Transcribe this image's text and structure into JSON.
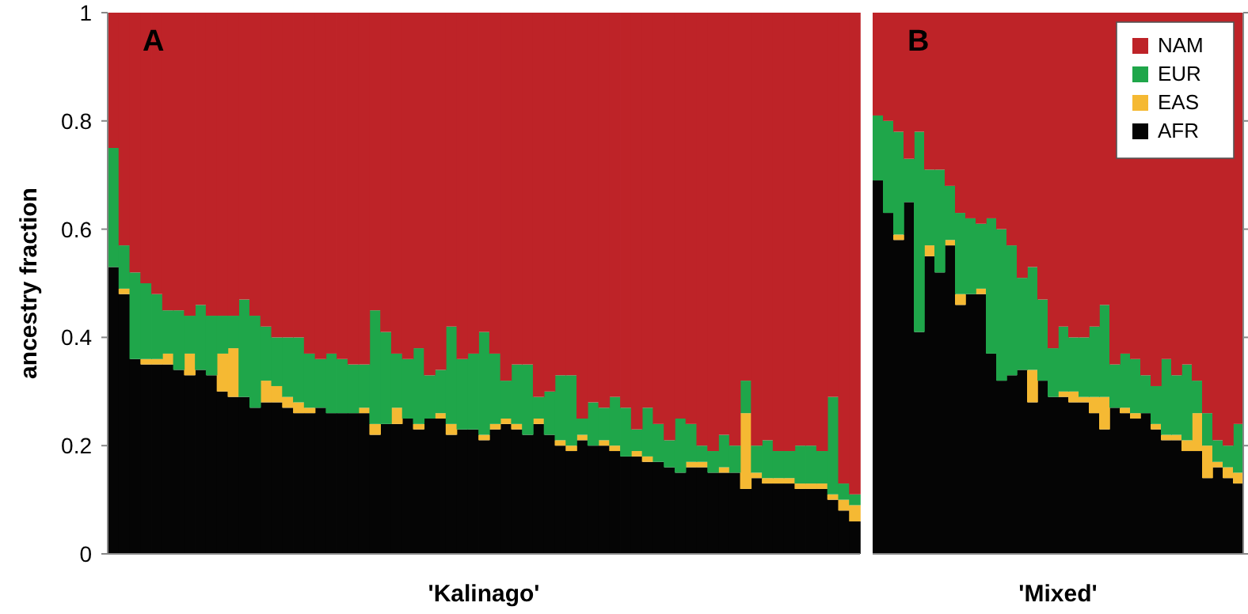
{
  "chart_data": [
    {
      "type": "bar",
      "stacked": true,
      "title": "A",
      "xlabel": "'Kalinago'",
      "ylabel": "ancestry fraction",
      "ylim": [
        0,
        1
      ],
      "yticks": [
        0,
        0.2,
        0.4,
        0.6,
        0.8,
        1
      ],
      "tick_labels": "y",
      "legend": false,
      "categories": [
        null,
        null,
        null,
        null,
        null,
        null,
        null,
        null,
        null,
        null,
        null,
        null,
        null,
        null,
        null,
        null,
        null,
        null,
        null,
        null,
        null,
        null,
        null,
        null,
        null,
        null,
        null,
        null,
        null,
        null,
        null,
        null,
        null,
        null,
        null,
        null,
        null,
        null,
        null,
        null,
        null,
        null,
        null,
        null,
        null,
        null,
        null,
        null,
        null,
        null,
        null,
        null,
        null,
        null,
        null,
        null,
        null,
        null,
        null,
        null,
        null,
        null,
        null,
        null,
        null,
        null,
        null,
        null,
        null
      ],
      "series": [
        {
          "color": "#050505",
          "values": [
            0.53,
            0.48,
            0.36,
            0.35,
            0.35,
            0.35,
            0.34,
            0.33,
            0.34,
            0.33,
            0.3,
            0.29,
            0.29,
            0.27,
            0.28,
            0.28,
            0.27,
            0.26,
            0.26,
            0.27,
            0.26,
            0.26,
            0.26,
            0.26,
            0.22,
            0.24,
            0.24,
            0.25,
            0.23,
            0.25,
            0.25,
            0.22,
            0.23,
            0.23,
            0.21,
            0.23,
            0.24,
            0.23,
            0.22,
            0.24,
            0.22,
            0.2,
            0.19,
            0.21,
            0.2,
            0.2,
            0.19,
            0.18,
            0.18,
            0.17,
            0.17,
            0.16,
            0.15,
            0.16,
            0.16,
            0.15,
            0.15,
            0.15,
            0.12,
            0.14,
            0.13,
            0.13,
            0.13,
            0.12,
            0.12,
            0.12,
            0.1,
            0.08,
            0.06
          ]
        },
        {
          "color": "#f5b933",
          "values": [
            0,
            0.01,
            0,
            0.01,
            0.01,
            0.02,
            0,
            0.04,
            0,
            0,
            0.07,
            0.09,
            0,
            0,
            0.04,
            0.03,
            0.02,
            0.02,
            0.01,
            0,
            0,
            0,
            0,
            0.01,
            0.02,
            0,
            0.03,
            0,
            0.01,
            0,
            0.01,
            0.02,
            0,
            0,
            0.01,
            0.01,
            0.01,
            0.01,
            0,
            0.01,
            0,
            0.01,
            0.01,
            0.01,
            0,
            0.01,
            0.01,
            0,
            0.01,
            0.01,
            0,
            0,
            0,
            0.01,
            0.01,
            0,
            0.01,
            0,
            0.14,
            0.01,
            0.01,
            0.01,
            0.01,
            0.01,
            0.01,
            0.01,
            0.01,
            0.02,
            0.03
          ]
        },
        {
          "color": "#1fa64a",
          "values": [
            0.22,
            0.08,
            0.16,
            0.14,
            0.12,
            0.08,
            0.11,
            0.07,
            0.12,
            0.11,
            0.07,
            0.06,
            0.18,
            0.17,
            0.1,
            0.09,
            0.11,
            0.12,
            0.1,
            0.09,
            0.11,
            0.1,
            0.09,
            0.08,
            0.21,
            0.17,
            0.1,
            0.11,
            0.14,
            0.08,
            0.08,
            0.18,
            0.13,
            0.14,
            0.19,
            0.13,
            0.07,
            0.11,
            0.13,
            0.04,
            0.08,
            0.12,
            0.13,
            0.03,
            0.08,
            0.06,
            0.09,
            0.09,
            0.04,
            0.09,
            0.07,
            0.05,
            0.1,
            0.07,
            0.03,
            0.04,
            0.06,
            0.05,
            0.06,
            0.05,
            0.07,
            0.05,
            0.05,
            0.07,
            0.07,
            0.06,
            0.18,
            0.03,
            0.02
          ]
        },
        {
          "color": "#be2328",
          "values": [
            0.25,
            0.43,
            0.48,
            0.5,
            0.52,
            0.55,
            0.55,
            0.56,
            0.54,
            0.56,
            0.56,
            0.56,
            0.53,
            0.56,
            0.58,
            0.6,
            0.6,
            0.6,
            0.63,
            0.64,
            0.63,
            0.64,
            0.65,
            0.65,
            0.55,
            0.59,
            0.63,
            0.64,
            0.62,
            0.67,
            0.66,
            0.58,
            0.64,
            0.63,
            0.59,
            0.63,
            0.68,
            0.65,
            0.65,
            0.71,
            0.7,
            0.67,
            0.67,
            0.75,
            0.72,
            0.73,
            0.71,
            0.73,
            0.77,
            0.73,
            0.76,
            0.79,
            0.75,
            0.76,
            0.8,
            0.81,
            0.78,
            0.8,
            0.68,
            0.8,
            0.79,
            0.81,
            0.81,
            0.8,
            0.8,
            0.81,
            0.71,
            0.87,
            0.89
          ]
        }
      ]
    },
    {
      "type": "bar",
      "stacked": true,
      "title": "B",
      "xlabel": "'Mixed'",
      "ylim": [
        0,
        1
      ],
      "yticks": [
        {
          "value": 0,
          "label": null
        },
        {
          "value": 0.2,
          "label": null
        },
        {
          "value": 0.4,
          "label": null
        },
        {
          "value": 0.6,
          "label": null
        },
        {
          "value": 0.8,
          "label": null
        },
        {
          "value": 1,
          "label": null
        }
      ],
      "tick_labels": false,
      "legend": "top right",
      "categories": [
        null,
        null,
        null,
        null,
        null,
        null,
        null,
        null,
        null,
        null,
        null,
        null,
        null,
        null,
        null,
        null,
        null,
        null,
        null,
        null,
        null,
        null,
        null,
        null,
        null,
        null,
        null,
        null,
        null,
        null,
        null,
        null,
        null,
        null,
        null,
        null
      ],
      "series": [
        {
          "name": "AFR",
          "color": "#050505",
          "values": [
            0.69,
            0.63,
            0.58,
            0.65,
            0.41,
            0.55,
            0.52,
            0.57,
            0.46,
            0.48,
            0.48,
            0.37,
            0.32,
            0.33,
            0.34,
            0.28,
            0.32,
            0.29,
            0.29,
            0.28,
            0.28,
            0.26,
            0.23,
            0.27,
            0.26,
            0.25,
            0.26,
            0.23,
            0.21,
            0.21,
            0.19,
            0.19,
            0.14,
            0.16,
            0.14,
            0.13
          ]
        },
        {
          "name": "EAS",
          "color": "#f5b933",
          "values": [
            0,
            0,
            0.01,
            0,
            0,
            0.02,
            0,
            0.01,
            0.02,
            0,
            0.01,
            0,
            0,
            0,
            0,
            0.06,
            0,
            0,
            0.01,
            0.02,
            0.01,
            0.03,
            0.06,
            0,
            0.01,
            0.01,
            0,
            0.01,
            0.01,
            0.01,
            0.02,
            0.07,
            0.06,
            0.01,
            0.02,
            0.02
          ]
        },
        {
          "name": "EUR",
          "color": "#1fa64a",
          "values": [
            0.12,
            0.17,
            0.19,
            0.08,
            0.37,
            0.14,
            0.19,
            0.1,
            0.15,
            0.14,
            0.12,
            0.25,
            0.28,
            0.24,
            0.17,
            0.19,
            0.15,
            0.09,
            0.12,
            0.1,
            0.11,
            0.13,
            0.17,
            0.08,
            0.1,
            0.1,
            0.07,
            0.07,
            0.14,
            0.11,
            0.14,
            0.06,
            0.06,
            0.04,
            0.04,
            0.09
          ]
        },
        {
          "name": "NAM",
          "color": "#be2328",
          "values": [
            0.19,
            0.2,
            0.22,
            0.27,
            0.22,
            0.29,
            0.29,
            0.32,
            0.37,
            0.38,
            0.39,
            0.38,
            0.4,
            0.43,
            0.49,
            0.47,
            0.53,
            0.62,
            0.58,
            0.6,
            0.6,
            0.58,
            0.54,
            0.65,
            0.63,
            0.64,
            0.67,
            0.69,
            0.64,
            0.67,
            0.65,
            0.68,
            0.74,
            0.79,
            0.8,
            0.76
          ]
        }
      ]
    }
  ]
}
